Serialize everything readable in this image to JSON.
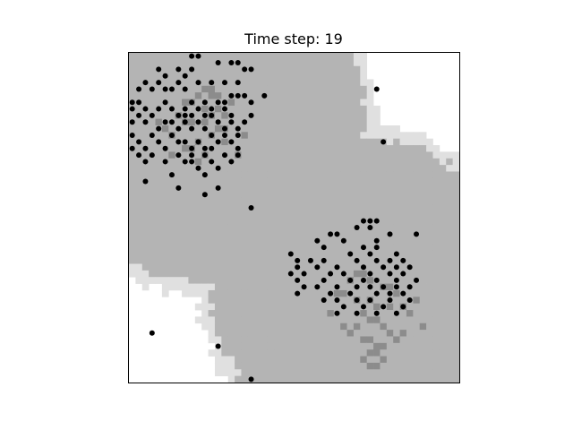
{
  "chart_data": {
    "type": "heatmap",
    "title": "Time step: 19",
    "xlabel": "",
    "ylabel": "",
    "grid_size": [
      50,
      50
    ],
    "ticks_visible": false,
    "levels": [
      {
        "level": 0,
        "color": "#ffffff"
      },
      {
        "level": 1,
        "color": "#e0e0e0"
      },
      {
        "level": 2,
        "color": "#b4b4b4"
      },
      {
        "level": 3,
        "color": "#8c8c8c"
      }
    ],
    "clusters": [
      {
        "center": [
          12.0,
          11.0
        ],
        "outer_radius": 26.0,
        "inner_radius": 24.0
      },
      {
        "center": [
          35.5,
          36.0
        ],
        "outer_radius": 25.0,
        "inner_radius": 23.0
      }
    ],
    "dark_cells": [
      [
        11,
        5
      ],
      [
        12,
        5
      ],
      [
        13,
        6
      ],
      [
        12,
        6
      ],
      [
        10,
        6
      ],
      [
        8,
        7
      ],
      [
        9,
        7
      ],
      [
        11,
        8
      ],
      [
        13,
        8
      ],
      [
        12,
        9
      ],
      [
        14,
        9
      ],
      [
        7,
        9
      ],
      [
        8,
        10
      ],
      [
        9,
        10
      ],
      [
        11,
        10
      ],
      [
        13,
        11
      ],
      [
        14,
        11
      ],
      [
        12,
        12
      ],
      [
        14,
        13
      ],
      [
        10,
        13
      ],
      [
        8,
        14
      ],
      [
        9,
        14
      ],
      [
        6,
        12
      ],
      [
        6,
        15
      ],
      [
        11,
        15
      ],
      [
        16,
        15
      ],
      [
        5,
        11
      ],
      [
        4,
        10
      ],
      [
        15,
        7
      ],
      [
        10,
        16
      ],
      [
        17,
        12
      ],
      [
        34,
        33
      ],
      [
        35,
        33
      ],
      [
        36,
        34
      ],
      [
        33,
        34
      ],
      [
        38,
        35
      ],
      [
        39,
        35
      ],
      [
        40,
        36
      ],
      [
        31,
        36
      ],
      [
        32,
        36
      ],
      [
        34,
        37
      ],
      [
        36,
        37
      ],
      [
        37,
        38
      ],
      [
        39,
        38
      ],
      [
        41,
        38
      ],
      [
        42,
        39
      ],
      [
        35,
        39
      ],
      [
        36,
        40
      ],
      [
        37,
        40
      ],
      [
        38,
        41
      ],
      [
        34,
        41
      ],
      [
        33,
        42
      ],
      [
        39,
        42
      ],
      [
        40,
        43
      ],
      [
        35,
        43
      ],
      [
        36,
        43
      ],
      [
        37,
        44
      ],
      [
        38,
        44
      ],
      [
        36,
        45
      ],
      [
        37,
        45
      ],
      [
        35,
        46
      ],
      [
        38,
        46
      ],
      [
        36,
        47
      ],
      [
        37,
        47
      ],
      [
        30,
        39
      ],
      [
        43,
        37
      ],
      [
        44,
        41
      ],
      [
        41,
        42
      ],
      [
        32,
        41
      ]
    ],
    "points": [
      [
        9,
        0
      ],
      [
        10,
        0
      ],
      [
        4,
        2
      ],
      [
        7,
        2
      ],
      [
        9,
        2
      ],
      [
        13,
        1
      ],
      [
        15,
        1
      ],
      [
        16,
        1
      ],
      [
        17,
        2
      ],
      [
        18,
        2
      ],
      [
        5,
        3
      ],
      [
        8,
        3
      ],
      [
        2,
        4
      ],
      [
        4,
        4
      ],
      [
        7,
        4
      ],
      [
        10,
        4
      ],
      [
        12,
        4
      ],
      [
        14,
        4
      ],
      [
        16,
        4
      ],
      [
        1,
        5
      ],
      [
        3,
        5
      ],
      [
        5,
        5
      ],
      [
        6,
        5
      ],
      [
        8,
        5
      ],
      [
        15,
        6
      ],
      [
        16,
        6
      ],
      [
        17,
        6
      ],
      [
        0,
        7
      ],
      [
        1,
        7
      ],
      [
        5,
        7
      ],
      [
        9,
        7
      ],
      [
        11,
        7
      ],
      [
        13,
        7
      ],
      [
        14,
        7
      ],
      [
        20,
        6
      ],
      [
        0,
        8
      ],
      [
        2,
        8
      ],
      [
        4,
        8
      ],
      [
        6,
        8
      ],
      [
        8,
        8
      ],
      [
        10,
        8
      ],
      [
        12,
        8
      ],
      [
        14,
        8
      ],
      [
        18,
        7
      ],
      [
        1,
        9
      ],
      [
        3,
        9
      ],
      [
        7,
        9
      ],
      [
        8,
        9
      ],
      [
        9,
        9
      ],
      [
        11,
        9
      ],
      [
        12,
        9
      ],
      [
        15,
        9
      ],
      [
        18,
        9
      ],
      [
        0,
        10
      ],
      [
        2,
        10
      ],
      [
        5,
        10
      ],
      [
        6,
        10
      ],
      [
        8,
        10
      ],
      [
        10,
        10
      ],
      [
        13,
        10
      ],
      [
        15,
        10
      ],
      [
        17,
        10
      ],
      [
        4,
        11
      ],
      [
        7,
        11
      ],
      [
        9,
        11
      ],
      [
        11,
        11
      ],
      [
        14,
        11
      ],
      [
        16,
        11
      ],
      [
        0,
        12
      ],
      [
        3,
        12
      ],
      [
        6,
        12
      ],
      [
        12,
        12
      ],
      [
        14,
        12
      ],
      [
        16,
        12
      ],
      [
        1,
        13
      ],
      [
        4,
        13
      ],
      [
        7,
        13
      ],
      [
        8,
        13
      ],
      [
        10,
        13
      ],
      [
        13,
        13
      ],
      [
        15,
        13
      ],
      [
        0,
        14
      ],
      [
        2,
        14
      ],
      [
        5,
        14
      ],
      [
        9,
        14
      ],
      [
        11,
        14
      ],
      [
        12,
        14
      ],
      [
        16,
        14
      ],
      [
        1,
        15
      ],
      [
        3,
        15
      ],
      [
        7,
        15
      ],
      [
        9,
        15
      ],
      [
        11,
        15
      ],
      [
        14,
        15
      ],
      [
        16,
        15
      ],
      [
        2,
        16
      ],
      [
        5,
        16
      ],
      [
        8,
        16
      ],
      [
        9,
        16
      ],
      [
        12,
        16
      ],
      [
        15,
        16
      ],
      [
        10,
        17
      ],
      [
        13,
        17
      ],
      [
        6,
        18
      ],
      [
        11,
        18
      ],
      [
        2,
        19
      ],
      [
        7,
        20
      ],
      [
        13,
        20
      ],
      [
        11,
        21
      ],
      [
        18,
        23
      ],
      [
        37,
        5
      ],
      [
        38,
        13
      ],
      [
        35,
        25
      ],
      [
        36,
        25
      ],
      [
        37,
        25
      ],
      [
        34,
        26
      ],
      [
        36,
        26
      ],
      [
        30,
        27
      ],
      [
        31,
        27
      ],
      [
        39,
        27
      ],
      [
        43,
        27
      ],
      [
        28,
        28
      ],
      [
        32,
        28
      ],
      [
        37,
        28
      ],
      [
        29,
        29
      ],
      [
        35,
        29
      ],
      [
        37,
        29
      ],
      [
        24,
        30
      ],
      [
        33,
        30
      ],
      [
        36,
        30
      ],
      [
        40,
        30
      ],
      [
        25,
        31
      ],
      [
        27,
        31
      ],
      [
        29,
        31
      ],
      [
        34,
        31
      ],
      [
        37,
        31
      ],
      [
        39,
        31
      ],
      [
        41,
        31
      ],
      [
        25,
        32
      ],
      [
        28,
        32
      ],
      [
        31,
        32
      ],
      [
        35,
        32
      ],
      [
        38,
        32
      ],
      [
        40,
        32
      ],
      [
        42,
        32
      ],
      [
        24,
        33
      ],
      [
        26,
        33
      ],
      [
        30,
        33
      ],
      [
        32,
        33
      ],
      [
        36,
        33
      ],
      [
        39,
        33
      ],
      [
        41,
        33
      ],
      [
        25,
        34
      ],
      [
        29,
        34
      ],
      [
        33,
        34
      ],
      [
        35,
        34
      ],
      [
        37,
        34
      ],
      [
        40,
        34
      ],
      [
        43,
        34
      ],
      [
        26,
        35
      ],
      [
        28,
        35
      ],
      [
        31,
        35
      ],
      [
        34,
        35
      ],
      [
        36,
        35
      ],
      [
        38,
        35
      ],
      [
        40,
        35
      ],
      [
        42,
        35
      ],
      [
        25,
        36
      ],
      [
        30,
        36
      ],
      [
        33,
        36
      ],
      [
        37,
        36
      ],
      [
        39,
        36
      ],
      [
        41,
        36
      ],
      [
        29,
        37
      ],
      [
        31,
        37
      ],
      [
        34,
        37
      ],
      [
        36,
        37
      ],
      [
        39,
        37
      ],
      [
        42,
        37
      ],
      [
        32,
        38
      ],
      [
        35,
        38
      ],
      [
        38,
        38
      ],
      [
        41,
        38
      ],
      [
        31,
        39
      ],
      [
        34,
        39
      ],
      [
        37,
        39
      ],
      [
        40,
        39
      ],
      [
        3,
        42
      ],
      [
        13,
        44
      ],
      [
        18,
        49
      ]
    ]
  }
}
